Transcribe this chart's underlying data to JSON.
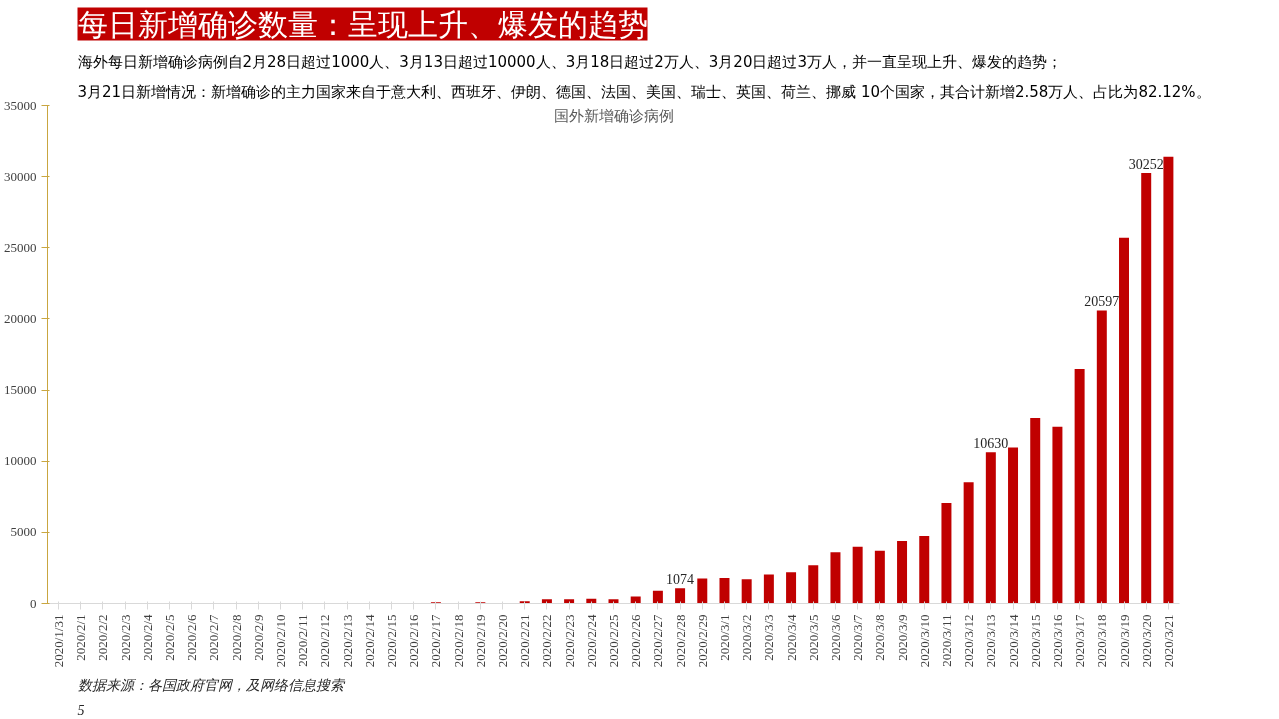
{
  "chart_data": {
    "type": "bar",
    "title": "每日新增确诊数量：呈现上升、爆发的趋势",
    "subtitle": "国外新增确诊病例",
    "categories": [
      "2020/1/31",
      "2020/2/1",
      "2020/2/2",
      "2020/2/3",
      "2020/2/4",
      "2020/2/5",
      "2020/2/6",
      "2020/2/7",
      "2020/2/8",
      "2020/2/9",
      "2020/2/10",
      "2020/2/11",
      "2020/2/12",
      "2020/2/13",
      "2020/2/14",
      "2020/2/15",
      "2020/2/16",
      "2020/2/17",
      "2020/2/18",
      "2020/2/19",
      "2020/2/20",
      "2020/2/21",
      "2020/2/22",
      "2020/2/23",
      "2020/2/24",
      "2020/2/25",
      "2020/2/26",
      "2020/2/27",
      "2020/2/28",
      "2020/2/29",
      "2020/3/1",
      "2020/3/2",
      "2020/3/3",
      "2020/3/4",
      "2020/3/5",
      "2020/3/6",
      "2020/3/7",
      "2020/3/8",
      "2020/3/9",
      "2020/3/10",
      "2020/3/11",
      "2020/3/12",
      "2020/3/13",
      "2020/3/14",
      "2020/3/15",
      "2020/3/16",
      "2020/3/17",
      "2020/3/18",
      "2020/3/19",
      "2020/3/20",
      "2020/3/21"
    ],
    "values": [
      0,
      0,
      0,
      0,
      0,
      0,
      0,
      0,
      0,
      0,
      null,
      0,
      0,
      30,
      0,
      null,
      null,
      80,
      null,
      80,
      null,
      150,
      300,
      300,
      330,
      290,
      490,
      890,
      1074,
      1750,
      1790,
      1710,
      2030,
      2190,
      2680,
      3610,
      3980,
      3700,
      4390,
      4750,
      7060,
      8530,
      10630,
      10960,
      13030,
      12420,
      16480,
      20597,
      25700,
      30252,
      31390
    ],
    "value_labels": [
      null,
      null,
      null,
      null,
      null,
      null,
      null,
      null,
      null,
      null,
      null,
      null,
      null,
      null,
      null,
      null,
      null,
      null,
      null,
      null,
      null,
      null,
      null,
      null,
      null,
      null,
      null,
      null,
      "1074",
      null,
      null,
      null,
      null,
      null,
      null,
      null,
      null,
      null,
      null,
      null,
      null,
      null,
      "10630",
      null,
      null,
      null,
      null,
      "20597",
      null,
      "30252",
      null
    ],
    "color": "#c00000",
    "ylim": [
      0,
      35000
    ],
    "yticks": [
      0,
      5000,
      10000,
      15000,
      20000,
      25000,
      30000,
      35000
    ],
    "grid": false,
    "annotations": [
      "海外每日新增确诊病例自2月28日超过1000人、3月13日超过10000人、3月18日超过2万人、3月20日超过3万人，并一直呈现上升、爆发的趋势；",
      "3月21日新增情况：新增确诊的主力国家来自于意大利、西班牙、伊朗、德国、法国、美国、瑞士、英国、荷兰、挪威 10个国家，其合计新增2.58万人、占比为82.12%。",
      "数据来源：各国政府官网，及网络信息搜索",
      "5"
    ]
  }
}
